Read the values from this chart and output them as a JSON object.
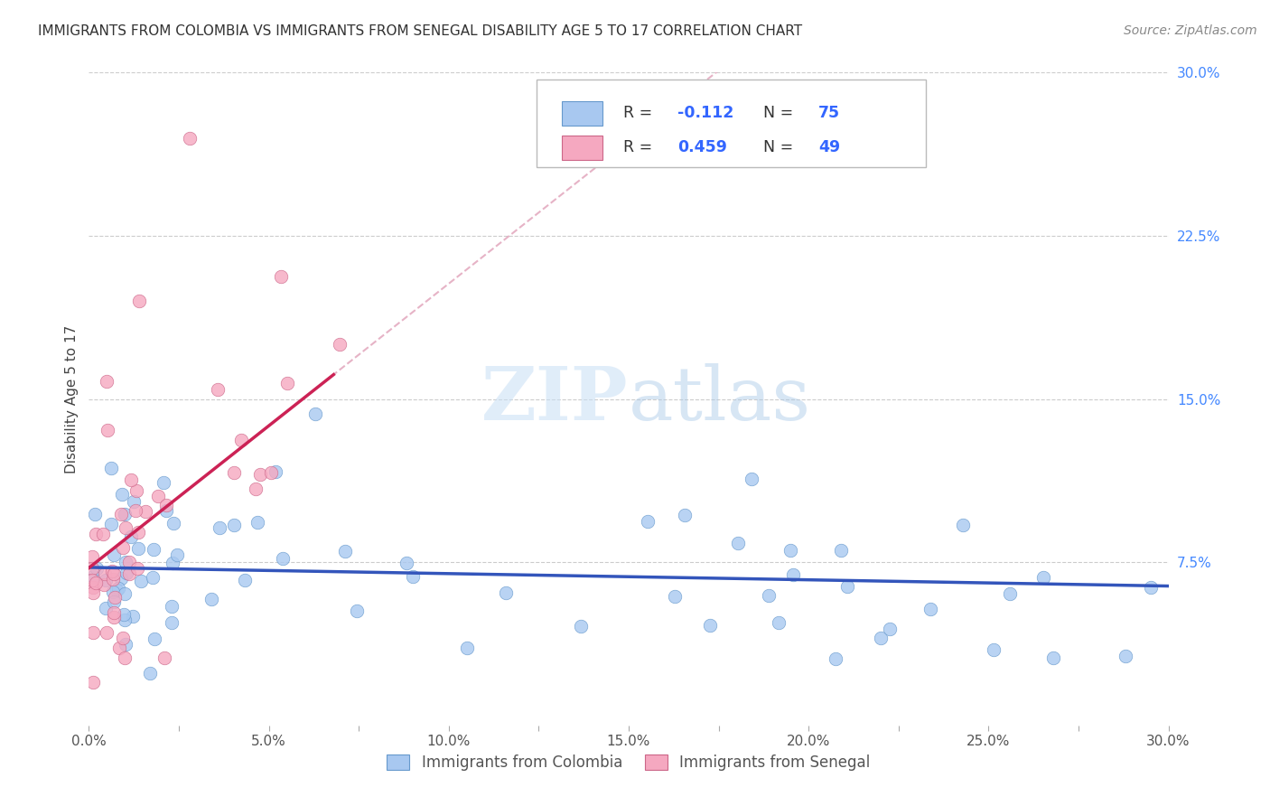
{
  "title": "IMMIGRANTS FROM COLOMBIA VS IMMIGRANTS FROM SENEGAL DISABILITY AGE 5 TO 17 CORRELATION CHART",
  "source": "Source: ZipAtlas.com",
  "ylabel": "Disability Age 5 to 17",
  "xlim": [
    0.0,
    0.3
  ],
  "ylim": [
    0.0,
    0.3
  ],
  "xtick_labels": [
    "0.0%",
    "",
    "5.0%",
    "",
    "10.0%",
    "",
    "15.0%",
    "",
    "20.0%",
    "",
    "25.0%",
    "",
    "30.0%"
  ],
  "ytick_labels": [
    "",
    "7.5%",
    "15.0%",
    "22.5%",
    "30.0%"
  ],
  "colombia_color": "#a8c8f0",
  "senegal_color": "#f5a8c0",
  "colombia_edge": "#6699cc",
  "senegal_edge": "#cc6688",
  "trend_colombia_color": "#3355bb",
  "trend_senegal_color": "#cc2255",
  "ref_line_color": "#e8b0c0",
  "colombia_R": -0.112,
  "colombia_N": 75,
  "senegal_R": 0.459,
  "senegal_N": 49,
  "watermark_zip": "ZIP",
  "watermark_atlas": "atlas",
  "legend_label_colombia": "Immigrants from Colombia",
  "legend_label_senegal": "Immigrants from Senegal"
}
